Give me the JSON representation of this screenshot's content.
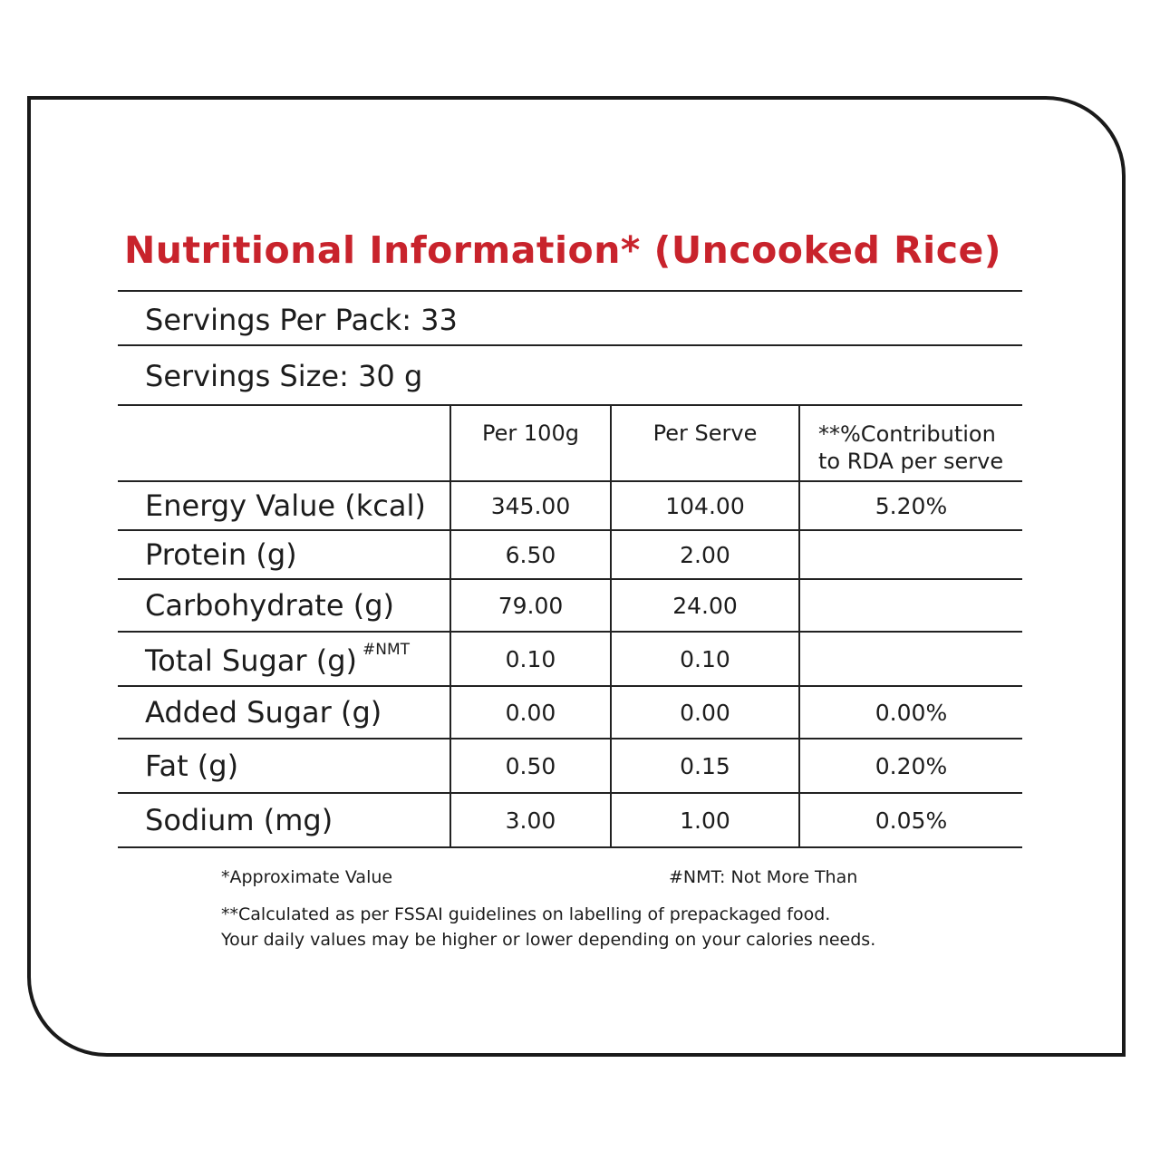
{
  "title": "Nutritional Information* (Uncooked Rice)",
  "servings_per_pack": "Servings Per Pack: 33",
  "serving_size": "Servings Size: 30 g",
  "columns": {
    "blank": "",
    "per_100g": "Per 100g",
    "per_serve": "Per Serve",
    "rda_line1": "**%Contribution",
    "rda_line2": "to RDA per serve"
  },
  "rows": [
    {
      "name": "Energy Value (kcal)",
      "sup": "",
      "per_100g": "345.00",
      "per_serve": "104.00",
      "rda": "5.20%"
    },
    {
      "name": "Protein (g)",
      "sup": "",
      "per_100g": "6.50",
      "per_serve": "2.00",
      "rda": ""
    },
    {
      "name": "Carbohydrate (g)",
      "sup": "",
      "per_100g": "79.00",
      "per_serve": "24.00",
      "rda": ""
    },
    {
      "name": "Total Sugar (g)",
      "sup": "#NMT",
      "per_100g": "0.10",
      "per_serve": "0.10",
      "rda": ""
    },
    {
      "name": "Added Sugar (g)",
      "sup": "",
      "per_100g": "0.00",
      "per_serve": "0.00",
      "rda": "0.00%"
    },
    {
      "name": "Fat (g)",
      "sup": "",
      "per_100g": "0.50",
      "per_serve": "0.15",
      "rda": "0.20%"
    },
    {
      "name": "Sodium (mg)",
      "sup": "",
      "per_100g": "3.00",
      "per_serve": "1.00",
      "rda": "0.05%"
    }
  ],
  "footnotes": {
    "approx": "*Approximate Value",
    "nmt": "#NMT: Not More Than",
    "calc_line1": "**Calculated as per FSSAI guidelines on labelling of prepackaged food.",
    "calc_line2": "Your daily values may be higher or lower depending on your calories needs."
  },
  "colors": {
    "title": "#c8232c",
    "text": "#1c1c1c",
    "border": "#1a1a1a"
  }
}
